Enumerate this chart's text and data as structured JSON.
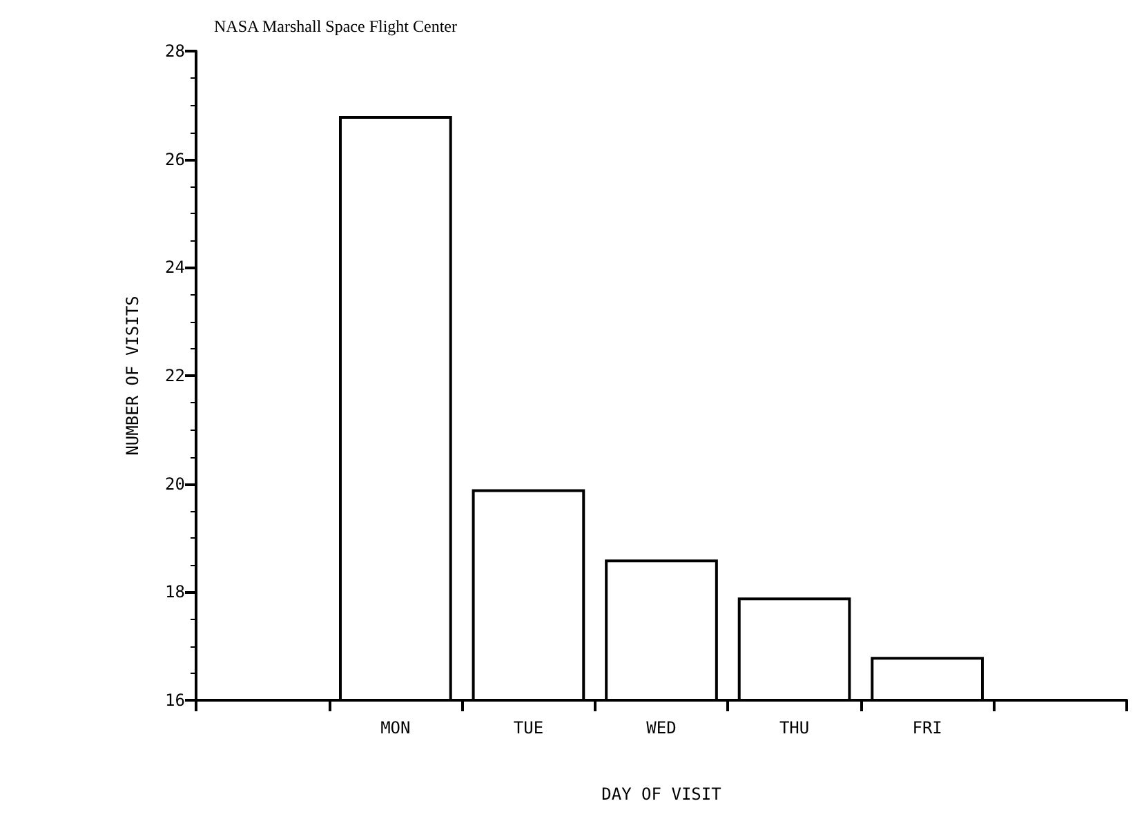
{
  "chart_data": {
    "type": "bar",
    "title": "NASA Marshall Space Flight Center",
    "xlabel": "DAY OF VISIT",
    "ylabel": "NUMBER OF VISITS",
    "categories": [
      null,
      "MON",
      "TUE",
      "WED",
      "THU",
      "FRI",
      null
    ],
    "values": [
      null,
      26.8,
      19.9,
      18.6,
      17.9,
      16.8,
      null
    ],
    "color": "#ffffff",
    "ylim": [
      16,
      28
    ],
    "yticks": [
      16,
      18,
      20,
      22,
      24,
      26,
      28
    ],
    "grid": false
  }
}
